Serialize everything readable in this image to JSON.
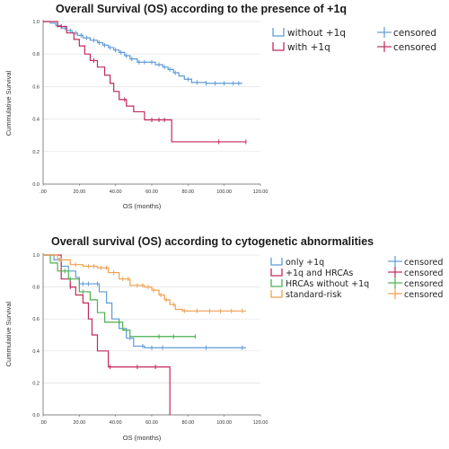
{
  "chart_data": [
    {
      "type": "line",
      "title": "Overall Survival (OS) according to the presence of +1q",
      "xlabel": "OS (months)",
      "ylabel": "Cummulative Survival",
      "xlim": [
        0,
        120
      ],
      "ylim": [
        0,
        1
      ],
      "x_ticks": [
        ".00",
        "20.00",
        "40.00",
        "60.00",
        "80.00",
        "100.00",
        "120.00"
      ],
      "y_ticks": [
        "0.0",
        "0.2",
        "0.4",
        "0.6",
        "0.8",
        "1.0"
      ],
      "grid": "horizontal",
      "legend_position": "right",
      "series": [
        {
          "name": "without +1q",
          "censored_label": "censored",
          "color": "#5f9bd6",
          "points": [
            [
              0,
              1.0
            ],
            [
              4,
              0.99
            ],
            [
              7,
              0.975
            ],
            [
              10,
              0.96
            ],
            [
              13,
              0.945
            ],
            [
              16,
              0.93
            ],
            [
              19,
              0.915
            ],
            [
              22,
              0.9
            ],
            [
              26,
              0.885
            ],
            [
              30,
              0.87
            ],
            [
              33,
              0.855
            ],
            [
              36,
              0.84
            ],
            [
              39,
              0.825
            ],
            [
              42,
              0.81
            ],
            [
              45,
              0.79
            ],
            [
              48,
              0.77
            ],
            [
              52,
              0.75
            ],
            [
              58,
              0.75
            ],
            [
              62,
              0.735
            ],
            [
              66,
              0.72
            ],
            [
              69,
              0.705
            ],
            [
              72,
              0.685
            ],
            [
              75,
              0.665
            ],
            [
              78,
              0.645
            ],
            [
              82,
              0.625
            ],
            [
              90,
              0.62
            ],
            [
              110,
              0.62
            ]
          ],
          "censor_x": [
            8,
            12,
            15,
            18,
            21,
            24,
            28,
            31,
            34,
            37,
            40,
            43,
            46,
            49,
            53,
            56,
            60,
            64,
            67,
            70,
            73,
            80,
            85,
            90,
            95,
            100,
            105,
            108
          ]
        },
        {
          "name": "with +1q",
          "censored_label": "censored",
          "color": "#c4295a",
          "points": [
            [
              0,
              1.0
            ],
            [
              8,
              0.97
            ],
            [
              13,
              0.93
            ],
            [
              17,
              0.89
            ],
            [
              20,
              0.85
            ],
            [
              23,
              0.8
            ],
            [
              26,
              0.76
            ],
            [
              30,
              0.72
            ],
            [
              34,
              0.67
            ],
            [
              37,
              0.62
            ],
            [
              39,
              0.57
            ],
            [
              42,
              0.52
            ],
            [
              46,
              0.48
            ],
            [
              50,
              0.445
            ],
            [
              56,
              0.395
            ],
            [
              71,
              0.26
            ],
            [
              112,
              0.26
            ]
          ],
          "censor_x": [
            10,
            28,
            45,
            60,
            64,
            67,
            97,
            112
          ]
        }
      ]
    },
    {
      "type": "line",
      "title": "Overall survival (OS) according to cytogenetic abnormalities",
      "xlabel": "OS (months)",
      "ylabel": "Cummulative Survival",
      "xlim": [
        0,
        120
      ],
      "ylim": [
        0,
        1
      ],
      "x_ticks": [
        ".00",
        "20.00",
        "40.00",
        "60.00",
        "80.00",
        "100.00",
        "120.00"
      ],
      "y_ticks": [
        "0.0",
        "0.2",
        "0.4",
        "0.6",
        "0.8",
        "1.0"
      ],
      "grid": "horizontal",
      "legend_position": "right",
      "series": [
        {
          "name": "only +1q",
          "censored_label": "censored",
          "color": "#5f9bd6",
          "points": [
            [
              0,
              1.0
            ],
            [
              6,
              0.97
            ],
            [
              10,
              0.93
            ],
            [
              14,
              0.9
            ],
            [
              18,
              0.86
            ],
            [
              20,
              0.82
            ],
            [
              28,
              0.82
            ],
            [
              31,
              0.77
            ],
            [
              35,
              0.7
            ],
            [
              38,
              0.6
            ],
            [
              42,
              0.54
            ],
            [
              46,
              0.48
            ],
            [
              50,
              0.43
            ],
            [
              56,
              0.42
            ],
            [
              112,
              0.42
            ]
          ],
          "censor_x": [
            9,
            22,
            25,
            30,
            48,
            55,
            60,
            66,
            90,
            110
          ]
        },
        {
          "name": "+1q and HRCAs",
          "censored_label": "censored",
          "color": "#c4295a",
          "points": [
            [
              0,
              1.0
            ],
            [
              10,
              0.85
            ],
            [
              15,
              0.8
            ],
            [
              18,
              0.75
            ],
            [
              22,
              0.7
            ],
            [
              25,
              0.6
            ],
            [
              27,
              0.5
            ],
            [
              30,
              0.4
            ],
            [
              36,
              0.3
            ],
            [
              62,
              0.3
            ],
            [
              70,
              0.0
            ]
          ],
          "censor_x": [
            15,
            37,
            52,
            62
          ]
        },
        {
          "name": "HRCAs without +1q",
          "censored_label": "censored",
          "color": "#4caf50",
          "points": [
            [
              0,
              1.0
            ],
            [
              4,
              0.95
            ],
            [
              8,
              0.9
            ],
            [
              14,
              0.85
            ],
            [
              20,
              0.77
            ],
            [
              26,
              0.72
            ],
            [
              30,
              0.64
            ],
            [
              34,
              0.58
            ],
            [
              40,
              0.58
            ],
            [
              44,
              0.53
            ],
            [
              48,
              0.49
            ],
            [
              84,
              0.49
            ]
          ],
          "censor_x": [
            12,
            15,
            22,
            42,
            64,
            72,
            84
          ]
        },
        {
          "name": "standard-risk",
          "censored_label": "censored",
          "color": "#f0a050",
          "points": [
            [
              0,
              1.0
            ],
            [
              8,
              0.97
            ],
            [
              15,
              0.94
            ],
            [
              22,
              0.93
            ],
            [
              30,
              0.92
            ],
            [
              36,
              0.89
            ],
            [
              42,
              0.85
            ],
            [
              48,
              0.81
            ],
            [
              56,
              0.8
            ],
            [
              60,
              0.78
            ],
            [
              64,
              0.75
            ],
            [
              67,
              0.72
            ],
            [
              70,
              0.69
            ],
            [
              73,
              0.66
            ],
            [
              77,
              0.65
            ],
            [
              112,
              0.65
            ]
          ],
          "censor_x": [
            10,
            18,
            25,
            28,
            32,
            35,
            39,
            44,
            47,
            52,
            55,
            58,
            61,
            65,
            68,
            72,
            78,
            85,
            92,
            98,
            104,
            110
          ]
        }
      ]
    }
  ]
}
